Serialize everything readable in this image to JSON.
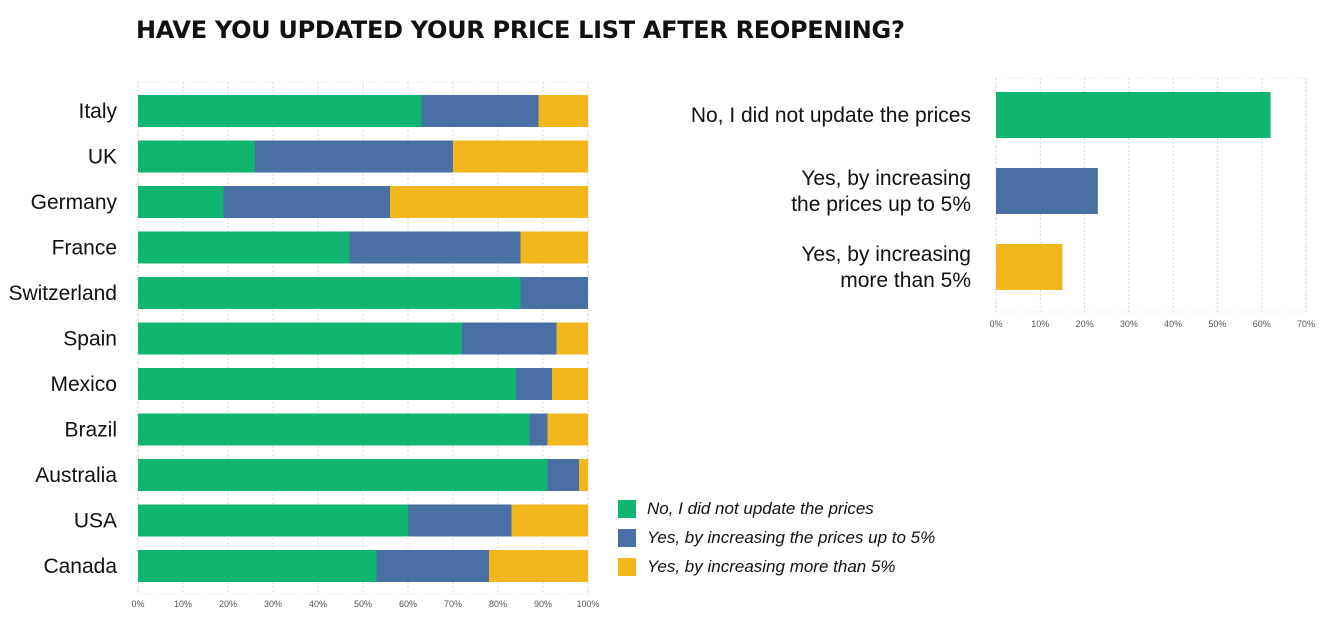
{
  "title": "HAVE YOU UPDATED YOUR PRICE LIST AFTER REOPENING?",
  "colors": {
    "no_update": "#10b56f",
    "up_to_5": "#4a6fa5",
    "more_than_5": "#f2b71a"
  },
  "legend": [
    {
      "label": "No, I did not update the prices",
      "color": "#10b56f"
    },
    {
      "label": "Yes, by increasing the prices up to 5%",
      "color": "#4a6fa5"
    },
    {
      "label": "Yes, by increasing more than 5%",
      "color": "#f2b71a"
    }
  ],
  "chart_data": [
    {
      "type": "bar",
      "orientation": "horizontal",
      "stacked": true,
      "categories": [
        "Italy",
        "UK",
        "Germany",
        "France",
        "Switzerland",
        "Spain",
        "Mexico",
        "Brazil",
        "Australia",
        "USA",
        "Canada"
      ],
      "series": [
        {
          "name": "No, I did not update the prices",
          "values": [
            63,
            26,
            19,
            47,
            85,
            72,
            84,
            87,
            91,
            60,
            53
          ]
        },
        {
          "name": "Yes, by increasing the prices up to 5%",
          "values": [
            26,
            44,
            37,
            38,
            15,
            21,
            8,
            4,
            7,
            23,
            25
          ]
        },
        {
          "name": "Yes, by increasing more than 5%",
          "values": [
            11,
            30,
            44,
            15,
            0,
            7,
            8,
            9,
            2,
            17,
            22
          ]
        }
      ],
      "xlim": [
        0,
        100
      ],
      "ticks": [
        "0%",
        "10%",
        "20%",
        "30%",
        "40%",
        "50%",
        "60%",
        "70%",
        "80%",
        "90%",
        "100%"
      ],
      "grid": true,
      "legend_position": "bottom-right"
    },
    {
      "type": "bar",
      "orientation": "horizontal",
      "categories": [
        "No, I did not update the prices",
        "Yes, by increasing|the prices up to 5%",
        "Yes, by increasing|more than 5%"
      ],
      "values": [
        62,
        23,
        15
      ],
      "xlim": [
        0,
        70
      ],
      "ticks": [
        "0%",
        "10%",
        "20%",
        "30%",
        "40%",
        "50%",
        "60%",
        "70%"
      ],
      "grid": true
    }
  ]
}
